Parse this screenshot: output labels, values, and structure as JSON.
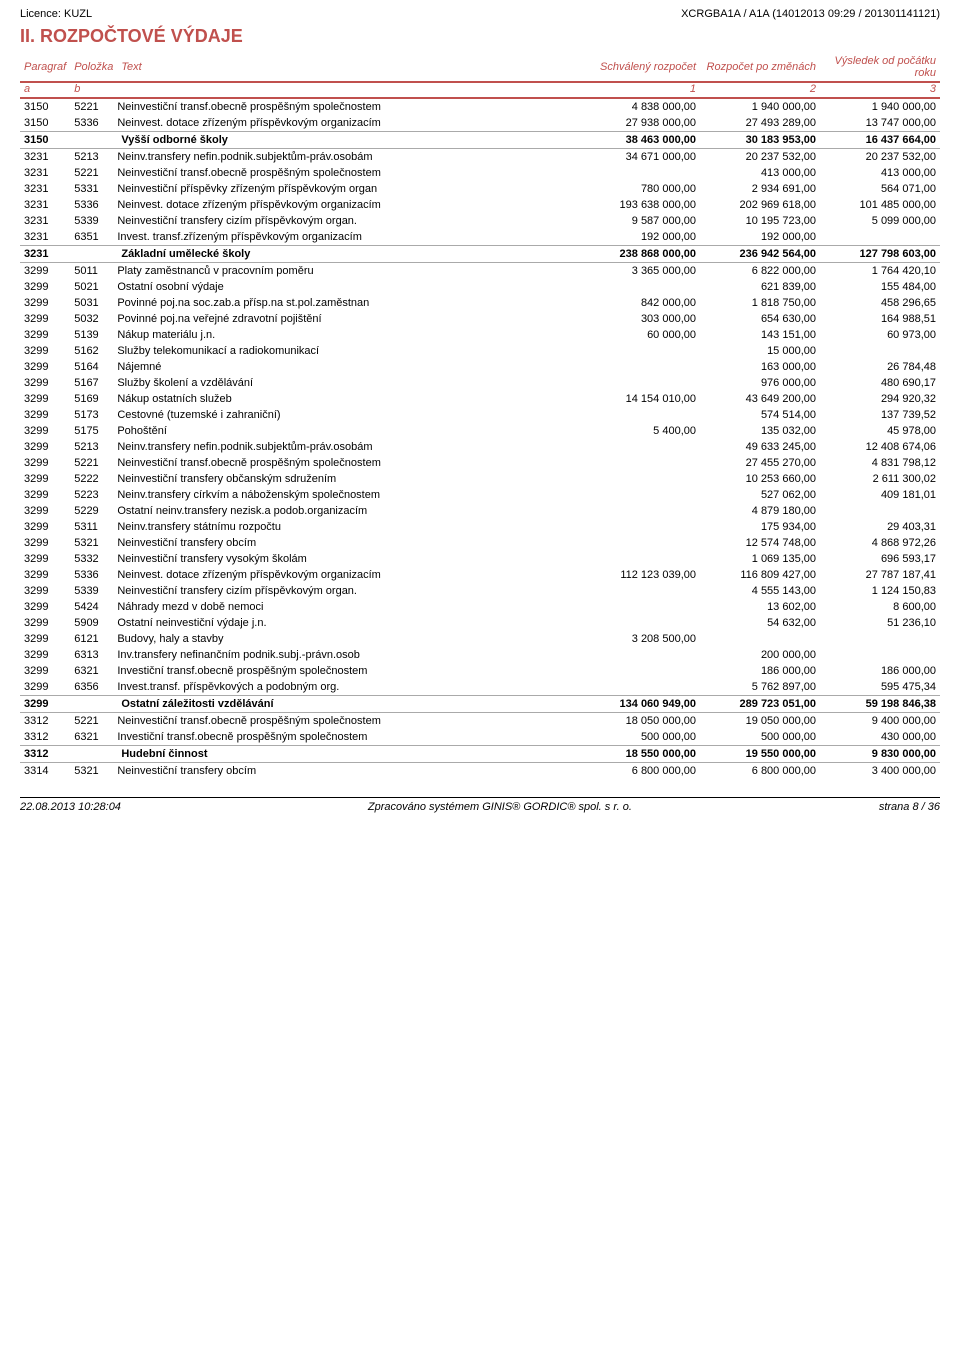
{
  "header": {
    "licence": "Licence: KUZL",
    "doc_id": "XCRGBA1A / A1A (14012013 09:29 / 201301141121)"
  },
  "section_title": "II. ROZPOČTOVÉ VÝDAJE",
  "columns": {
    "para": "Paragraf",
    "pol": "Položka",
    "text": "Text",
    "c1": "Schválený rozpočet",
    "c2": "Rozpočet po změnách",
    "c3": "Výsledek od počátku roku",
    "a": "a",
    "b": "b",
    "n1": "1",
    "n2": "2",
    "n3": "3"
  },
  "rows": [
    {
      "type": "detail",
      "para": "3150",
      "pol": "5221",
      "text": "Neinvestiční transf.obecně prospěšným společnostem",
      "v1": "4 838 000,00",
      "v2": "1 940 000,00",
      "v3": "1 940 000,00"
    },
    {
      "type": "detail",
      "para": "3150",
      "pol": "5336",
      "text": "Neinvest. dotace zřízeným příspěvkovým organizacím",
      "v1": "27 938 000,00",
      "v2": "27 493 289,00",
      "v3": "13 747 000,00"
    },
    {
      "type": "group",
      "para": "3150",
      "pol": "",
      "text": "Vyšší odborné školy",
      "v1": "38 463 000,00",
      "v2": "30 183 953,00",
      "v3": "16 437 664,00"
    },
    {
      "type": "detail",
      "para": "3231",
      "pol": "5213",
      "text": "Neinv.transfery nefin.podnik.subjektům-práv.osobám",
      "v1": "34 671 000,00",
      "v2": "20 237 532,00",
      "v3": "20 237 532,00"
    },
    {
      "type": "detail",
      "para": "3231",
      "pol": "5221",
      "text": "Neinvestiční transf.obecně prospěšným společnostem",
      "v1": "",
      "v2": "413 000,00",
      "v3": "413 000,00"
    },
    {
      "type": "detail",
      "para": "3231",
      "pol": "5331",
      "text": "Neinvestiční příspěvky zřízeným příspěvkovým organ",
      "v1": "780 000,00",
      "v2": "2 934 691,00",
      "v3": "564 071,00"
    },
    {
      "type": "detail",
      "para": "3231",
      "pol": "5336",
      "text": "Neinvest. dotace zřízeným příspěvkovým organizacím",
      "v1": "193 638 000,00",
      "v2": "202 969 618,00",
      "v3": "101 485 000,00"
    },
    {
      "type": "detail",
      "para": "3231",
      "pol": "5339",
      "text": "Neinvestiční transfery cizím příspěvkovým organ.",
      "v1": "9 587 000,00",
      "v2": "10 195 723,00",
      "v3": "5 099 000,00"
    },
    {
      "type": "detail",
      "para": "3231",
      "pol": "6351",
      "text": "Invest. transf.zřízeným příspěvkovým organizacím",
      "v1": "192 000,00",
      "v2": "192 000,00",
      "v3": ""
    },
    {
      "type": "group",
      "para": "3231",
      "pol": "",
      "text": "Základní umělecké školy",
      "v1": "238 868 000,00",
      "v2": "236 942 564,00",
      "v3": "127 798 603,00"
    },
    {
      "type": "detail",
      "para": "3299",
      "pol": "5011",
      "text": "Platy zaměstnanců v pracovním poměru",
      "v1": "3 365 000,00",
      "v2": "6 822 000,00",
      "v3": "1 764 420,10"
    },
    {
      "type": "detail",
      "para": "3299",
      "pol": "5021",
      "text": "Ostatní osobní výdaje",
      "v1": "",
      "v2": "621 839,00",
      "v3": "155 484,00"
    },
    {
      "type": "detail",
      "para": "3299",
      "pol": "5031",
      "text": "Povinné poj.na soc.zab.a přísp.na st.pol.zaměstnan",
      "v1": "842 000,00",
      "v2": "1 818 750,00",
      "v3": "458 296,65"
    },
    {
      "type": "detail",
      "para": "3299",
      "pol": "5032",
      "text": "Povinné poj.na veřejné zdravotní pojištění",
      "v1": "303 000,00",
      "v2": "654 630,00",
      "v3": "164 988,51"
    },
    {
      "type": "detail",
      "para": "3299",
      "pol": "5139",
      "text": "Nákup materiálu j.n.",
      "v1": "60 000,00",
      "v2": "143 151,00",
      "v3": "60 973,00"
    },
    {
      "type": "detail",
      "para": "3299",
      "pol": "5162",
      "text": "Služby telekomunikací a radiokomunikací",
      "v1": "",
      "v2": "15 000,00",
      "v3": ""
    },
    {
      "type": "detail",
      "para": "3299",
      "pol": "5164",
      "text": "Nájemné",
      "v1": "",
      "v2": "163 000,00",
      "v3": "26 784,48"
    },
    {
      "type": "detail",
      "para": "3299",
      "pol": "5167",
      "text": "Služby školení a vzdělávání",
      "v1": "",
      "v2": "976 000,00",
      "v3": "480 690,17"
    },
    {
      "type": "detail",
      "para": "3299",
      "pol": "5169",
      "text": "Nákup ostatních služeb",
      "v1": "14 154 010,00",
      "v2": "43 649 200,00",
      "v3": "294 920,32"
    },
    {
      "type": "detail",
      "para": "3299",
      "pol": "5173",
      "text": "Cestovné (tuzemské i zahraniční)",
      "v1": "",
      "v2": "574 514,00",
      "v3": "137 739,52"
    },
    {
      "type": "detail",
      "para": "3299",
      "pol": "5175",
      "text": "Pohoštění",
      "v1": "5 400,00",
      "v2": "135 032,00",
      "v3": "45 978,00"
    },
    {
      "type": "detail",
      "para": "3299",
      "pol": "5213",
      "text": "Neinv.transfery nefin.podnik.subjektům-práv.osobám",
      "v1": "",
      "v2": "49 633 245,00",
      "v3": "12 408 674,06"
    },
    {
      "type": "detail",
      "para": "3299",
      "pol": "5221",
      "text": "Neinvestiční transf.obecně prospěšným společnostem",
      "v1": "",
      "v2": "27 455 270,00",
      "v3": "4 831 798,12"
    },
    {
      "type": "detail",
      "para": "3299",
      "pol": "5222",
      "text": "Neinvestiční transfery občanským sdružením",
      "v1": "",
      "v2": "10 253 660,00",
      "v3": "2 611 300,02"
    },
    {
      "type": "detail",
      "para": "3299",
      "pol": "5223",
      "text": "Neinv.transfery církvím a náboženským společnostem",
      "v1": "",
      "v2": "527 062,00",
      "v3": "409 181,01"
    },
    {
      "type": "detail",
      "para": "3299",
      "pol": "5229",
      "text": "Ostatní neinv.transfery nezisk.a podob.organizacím",
      "v1": "",
      "v2": "4 879 180,00",
      "v3": ""
    },
    {
      "type": "detail",
      "para": "3299",
      "pol": "5311",
      "text": "Neinv.transfery státnímu rozpočtu",
      "v1": "",
      "v2": "175 934,00",
      "v3": "29 403,31"
    },
    {
      "type": "detail",
      "para": "3299",
      "pol": "5321",
      "text": "Neinvestiční transfery obcím",
      "v1": "",
      "v2": "12 574 748,00",
      "v3": "4 868 972,26"
    },
    {
      "type": "detail",
      "para": "3299",
      "pol": "5332",
      "text": "Neinvestiční transfery vysokým školám",
      "v1": "",
      "v2": "1 069 135,00",
      "v3": "696 593,17"
    },
    {
      "type": "detail",
      "para": "3299",
      "pol": "5336",
      "text": "Neinvest. dotace zřízeným příspěvkovým organizacím",
      "v1": "112 123 039,00",
      "v2": "116 809 427,00",
      "v3": "27 787 187,41"
    },
    {
      "type": "detail",
      "para": "3299",
      "pol": "5339",
      "text": "Neinvestiční transfery cizím příspěvkovým organ.",
      "v1": "",
      "v2": "4 555 143,00",
      "v3": "1 124 150,83"
    },
    {
      "type": "detail",
      "para": "3299",
      "pol": "5424",
      "text": "Náhrady mezd v době nemoci",
      "v1": "",
      "v2": "13 602,00",
      "v3": "8 600,00"
    },
    {
      "type": "detail",
      "para": "3299",
      "pol": "5909",
      "text": "Ostatní neinvestiční výdaje j.n.",
      "v1": "",
      "v2": "54 632,00",
      "v3": "51 236,10"
    },
    {
      "type": "detail",
      "para": "3299",
      "pol": "6121",
      "text": "Budovy, haly a stavby",
      "v1": "3 208 500,00",
      "v2": "",
      "v3": ""
    },
    {
      "type": "detail",
      "para": "3299",
      "pol": "6313",
      "text": "Inv.transfery nefinančním podnik.subj.-právn.osob",
      "v1": "",
      "v2": "200 000,00",
      "v3": ""
    },
    {
      "type": "detail",
      "para": "3299",
      "pol": "6321",
      "text": "Investiční transf.obecně prospěšným společnostem",
      "v1": "",
      "v2": "186 000,00",
      "v3": "186 000,00"
    },
    {
      "type": "detail",
      "para": "3299",
      "pol": "6356",
      "text": "Invest.transf. příspěvkových a podobným org.",
      "v1": "",
      "v2": "5 762 897,00",
      "v3": "595 475,34"
    },
    {
      "type": "group",
      "para": "3299",
      "pol": "",
      "text": "Ostatní záležitosti vzdělávání",
      "v1": "134 060 949,00",
      "v2": "289 723 051,00",
      "v3": "59 198 846,38"
    },
    {
      "type": "detail",
      "para": "3312",
      "pol": "5221",
      "text": "Neinvestiční transf.obecně prospěšným společnostem",
      "v1": "18 050 000,00",
      "v2": "19 050 000,00",
      "v3": "9 400 000,00"
    },
    {
      "type": "detail",
      "para": "3312",
      "pol": "6321",
      "text": "Investiční transf.obecně prospěšným společnostem",
      "v1": "500 000,00",
      "v2": "500 000,00",
      "v3": "430 000,00"
    },
    {
      "type": "group",
      "para": "3312",
      "pol": "",
      "text": "Hudební činnost",
      "v1": "18 550 000,00",
      "v2": "19 550 000,00",
      "v3": "9 830 000,00"
    },
    {
      "type": "detail",
      "para": "3314",
      "pol": "5321",
      "text": "Neinvestiční transfery obcím",
      "v1": "6 800 000,00",
      "v2": "6 800 000,00",
      "v3": "3 400 000,00"
    }
  ],
  "footer": {
    "left": "22.08.2013 10:28:04",
    "center": "Zpracováno systémem GINIS® GORDIC® spol. s  r. o.",
    "right": "strana 8 / 36"
  }
}
